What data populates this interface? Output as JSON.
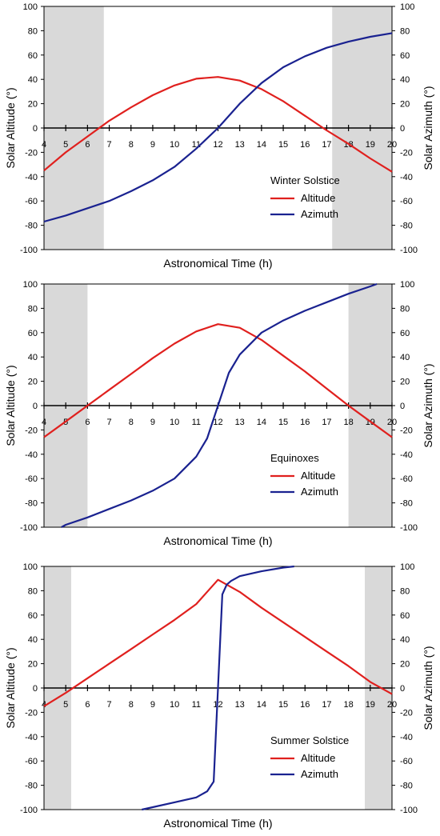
{
  "chart_data": [
    {
      "type": "line",
      "ylabel_left": "Solar Altitude (°)",
      "ylabel_right": "Solar Azimuth (°)",
      "xlabel": "Astronomical Time (h)",
      "xlim": [
        4,
        20
      ],
      "ylim": [
        -100,
        100
      ],
      "x_ticks": [
        4,
        5,
        6,
        7,
        8,
        9,
        10,
        11,
        12,
        13,
        14,
        15,
        16,
        17,
        18,
        19,
        20
      ],
      "y_ticks": [
        -100,
        -80,
        -60,
        -40,
        -20,
        0,
        20,
        40,
        60,
        80,
        100
      ],
      "grid": false,
      "legend_title": "Winter Solstice",
      "legend_position": "lower-right",
      "night_shading": [
        [
          4,
          6.75
        ],
        [
          17.25,
          20
        ]
      ],
      "series": [
        {
          "name": "Altitude",
          "color": "#e0201e",
          "x": [
            4,
            5,
            6,
            7,
            8,
            9,
            10,
            11,
            12,
            13,
            14,
            15,
            16,
            17,
            18,
            19,
            20
          ],
          "y": [
            -35,
            -20,
            -7,
            6,
            17,
            27,
            35,
            40.5,
            42,
            39,
            32,
            22,
            10,
            -2,
            -13,
            -25,
            -36
          ]
        },
        {
          "name": "Azimuth",
          "color": "#1a2290",
          "x": [
            4,
            5,
            6,
            7,
            8,
            9,
            10,
            11,
            12,
            13,
            14,
            15,
            16,
            17,
            18,
            19,
            20
          ],
          "y": [
            -77,
            -72,
            -66,
            -60,
            -52,
            -43,
            -32,
            -17,
            0,
            20,
            37,
            50,
            59,
            66,
            71,
            75,
            78
          ]
        }
      ]
    },
    {
      "type": "line",
      "ylabel_left": "Solar Altitude (°)",
      "ylabel_right": "Solar Azimuth (°)",
      "xlabel": "Astronomical Time (h)",
      "xlim": [
        4,
        20
      ],
      "ylim": [
        -100,
        100
      ],
      "x_ticks": [
        4,
        5,
        6,
        7,
        8,
        9,
        10,
        11,
        12,
        13,
        14,
        15,
        16,
        17,
        18,
        19,
        20
      ],
      "y_ticks": [
        -100,
        -80,
        -60,
        -40,
        -20,
        0,
        20,
        40,
        60,
        80,
        100
      ],
      "grid": false,
      "legend_title": "Equinoxes",
      "legend_position": "lower-right",
      "night_shading": [
        [
          4,
          6
        ],
        [
          18,
          20
        ]
      ],
      "series": [
        {
          "name": "Altitude",
          "color": "#e0201e",
          "x": [
            4,
            5,
            6,
            7,
            8,
            9,
            10,
            11,
            12,
            13,
            14,
            15,
            16,
            17,
            18,
            19,
            20
          ],
          "y": [
            -26,
            -13,
            0,
            13,
            26,
            39,
            51,
            61,
            67,
            64,
            54,
            41,
            28,
            14,
            0,
            -13,
            -26
          ]
        },
        {
          "name": "Azimuth",
          "color": "#1a2290",
          "x": [
            4.8,
            5,
            6,
            7,
            8,
            9,
            10,
            11,
            11.5,
            12,
            12.5,
            13,
            14,
            15,
            16,
            17,
            18,
            19,
            19.3
          ],
          "y": [
            -100,
            -98,
            -92,
            -85,
            -78,
            -70,
            -60,
            -42,
            -27,
            0,
            27,
            42,
            60,
            70,
            78,
            85,
            92,
            98,
            100
          ]
        }
      ]
    },
    {
      "type": "line",
      "ylabel_left": "Solar Altitude (°)",
      "ylabel_right": "Solar Azimuth (°)",
      "xlabel": "Astronomical Time (h)",
      "xlim": [
        4,
        20
      ],
      "ylim": [
        -100,
        100
      ],
      "x_ticks": [
        4,
        5,
        6,
        7,
        8,
        9,
        10,
        11,
        12,
        13,
        14,
        15,
        16,
        17,
        18,
        19,
        20
      ],
      "y_ticks": [
        -100,
        -80,
        -60,
        -40,
        -20,
        0,
        20,
        40,
        60,
        80,
        100
      ],
      "grid": false,
      "legend_title": "Summer Solstice",
      "legend_position": "lower-right",
      "night_shading": [
        [
          4,
          5.25
        ],
        [
          18.75,
          20
        ]
      ],
      "series": [
        {
          "name": "Altitude",
          "color": "#e0201e",
          "x": [
            4,
            5,
            6,
            7,
            8,
            9,
            10,
            11,
            12,
            13,
            14,
            15,
            16,
            17,
            18,
            19,
            20
          ],
          "y": [
            -15,
            -4,
            8,
            20,
            32,
            44,
            56,
            69,
            89,
            79,
            66,
            54,
            42,
            30,
            18,
            5,
            -5
          ]
        },
        {
          "name": "Azimuth",
          "color": "#1a2290",
          "x": [
            8.5,
            9,
            10,
            11,
            11.5,
            11.8,
            12,
            12.2,
            12.4,
            12.6,
            13,
            14,
            15,
            15.5
          ],
          "y": [
            -100,
            -98,
            -94,
            -90,
            -85,
            -77,
            0,
            77,
            85,
            88,
            92,
            96,
            99,
            100
          ]
        }
      ]
    }
  ]
}
